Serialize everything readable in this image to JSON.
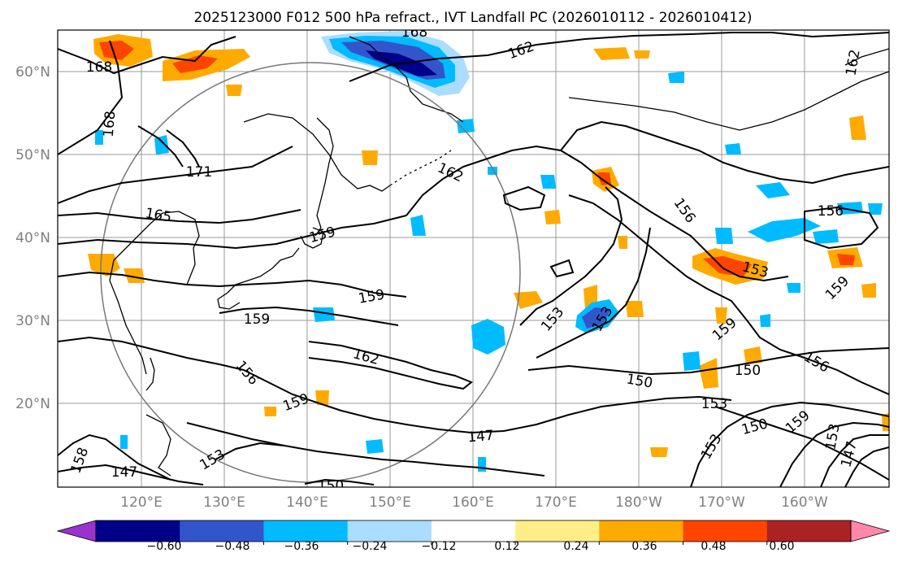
{
  "title": "2025123000 F012 500 hPa refract., IVT Landfall PC (2026010112 - 2026010412)",
  "lat_ticks": [
    "60°N",
    "50°N",
    "40°N",
    "30°N",
    "20°N"
  ],
  "lon_ticks": [
    "120°E",
    "130°E",
    "140°E",
    "150°E",
    "160°E",
    "170°E",
    "180°W",
    "170°W",
    "160°W"
  ],
  "contour_labels": [
    "168",
    "168",
    "162",
    "162",
    "168",
    "171",
    "162",
    "165",
    "159",
    "156",
    "156",
    "153",
    "159",
    "159",
    "153",
    "153",
    "159",
    "162",
    "159",
    "150",
    "156",
    "150",
    "159",
    "153",
    "147",
    "153",
    "150",
    "159",
    "153",
    "147",
    "150",
    "156",
    "153",
    "147",
    "158"
  ],
  "colorbar": {
    "ticks": [
      "−0.60",
      "−0.48",
      "−0.36",
      "−0.24",
      "−0.12",
      "0.12",
      "0.24",
      "0.36",
      "0.48",
      "0.60"
    ],
    "colors": [
      "#9933cc",
      "#000088",
      "#3355cc",
      "#00bbff",
      "#aaddff",
      "#ffffff",
      "#ffee88",
      "#ffaa00",
      "#ff4400",
      "#aa2222",
      "#ff88aa"
    ]
  },
  "map_colors": {
    "neg_strong": "#000088",
    "neg_mid": "#3355cc",
    "neg_light": "#00bbff",
    "neg_pale": "#aaddff",
    "pos_pale": "#ffee88",
    "pos_light": "#ffaa00",
    "pos_mid": "#ff4400",
    "land": "#000000",
    "contour": "#000000",
    "grid": "#999999"
  }
}
